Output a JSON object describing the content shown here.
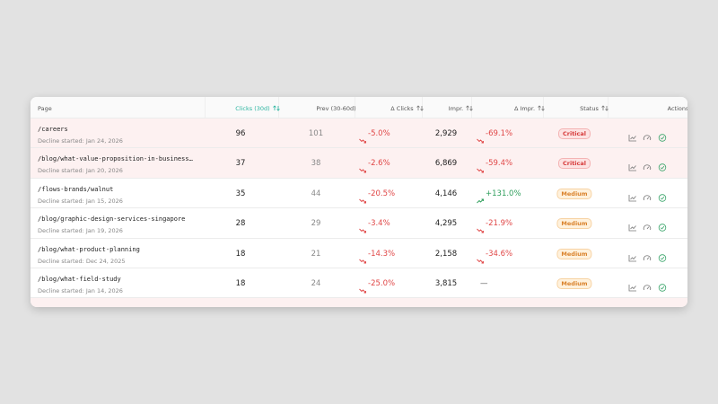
{
  "table": {
    "headers": [
      "Page",
      "Clicks (30d)",
      "Prev (30-60d)",
      "Δ Clicks",
      "Impr.",
      "Δ Impr.",
      "Status",
      "Actions"
    ],
    "rows": [
      {
        "page": "/careers",
        "started": "Decline started: Jan 24, 2026",
        "clicks": "96",
        "prev": "101",
        "d_clicks": "-5.0%",
        "impr": "2,929",
        "d_impr": "-69.1%",
        "status": "Critical",
        "status_color": "red"
      },
      {
        "page": "/blog/what-value-proposition-in-business…",
        "started": "Decline started: Jan 20, 2026",
        "clicks": "37",
        "prev": "38",
        "d_clicks": "-2.6%",
        "impr": "6,869",
        "d_impr": "-59.4%",
        "status": "Critical",
        "status_color": "red"
      },
      {
        "page": "/flows-brands/walnut",
        "started": "Decline started: Jan 15, 2026",
        "clicks": "35",
        "prev": "44",
        "d_clicks": "-20.5%",
        "impr": "4,146",
        "d_impr": "+131.0%",
        "status": "Medium",
        "status_color": "orange"
      },
      {
        "page": "/blog/graphic-design-services-singapore",
        "started": "Decline started: Jan 19, 2026",
        "clicks": "28",
        "prev": "29",
        "d_clicks": "-3.4%",
        "impr": "4,295",
        "d_impr": "-21.9%",
        "status": "Medium",
        "status_color": "orange"
      },
      {
        "page": "/blog/what-product-planning",
        "started": "Decline started: Dec 24, 2025",
        "clicks": "18",
        "prev": "21",
        "d_clicks": "-14.3%",
        "impr": "2,158",
        "d_impr": "-34.6%",
        "status": "Medium",
        "status_color": "orange"
      },
      {
        "page": "/blog/what-field-study",
        "started": "Decline started: Jan 14, 2026",
        "clicks": "18",
        "prev": "24",
        "d_clicks": "-25.0%",
        "impr": "3,815",
        "d_impr": "—",
        "status": "Medium",
        "status_color": "orange"
      }
    ]
  }
}
